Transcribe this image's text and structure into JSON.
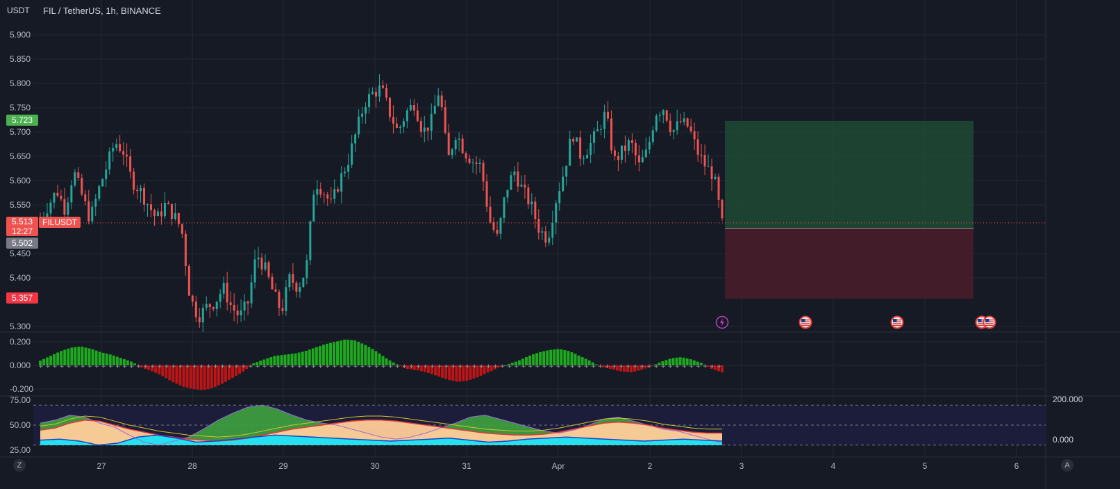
{
  "header": {
    "currency": "USDT",
    "title": "FIL / TetherUS, 1h, BINANCE"
  },
  "price_tags": {
    "take_profit": "5.723",
    "current_price": "5.513",
    "countdown": "12:27",
    "symbol": "FILUSDT",
    "entry": "5.502",
    "stop_loss": "5.357"
  },
  "colors": {
    "background": "#161a25",
    "bull": "#26a69a",
    "bear": "#ef5350",
    "profit_zone": "#1f4a35",
    "loss_zone": "#4a1f2a",
    "osc_pos": "#1fba1f",
    "osc_neg": "#d01515",
    "lower_band": "#1b1d3a",
    "wave_fill": "#ffcc99",
    "cyan_fill": "#00e5ff"
  },
  "events": [
    {
      "icon": "lightning-icon"
    },
    {
      "icon": "us-flag-icon"
    },
    {
      "icon": "us-flag-icon"
    },
    {
      "icon": "us-flag-icon"
    },
    {
      "icon": "us-flag-icon"
    }
  ],
  "bottom_right": {
    "top": "200.000",
    "bottom": "0.000"
  },
  "corner_buttons": {
    "left": "Z",
    "right": "A"
  },
  "chart_data": [
    {
      "type": "candlestick",
      "title": "FIL / TetherUS, 1h, BINANCE",
      "y_ticks": [
        "5.900",
        "5.850",
        "5.800",
        "5.750",
        "5.700",
        "5.650",
        "5.600",
        "5.550",
        "5.450",
        "5.400",
        "5.300"
      ],
      "ylim": [
        5.28,
        5.91
      ],
      "x_ticks": [
        "27",
        "28",
        "29",
        "30",
        "31",
        "Apr",
        "2",
        "3",
        "4",
        "5",
        "6"
      ],
      "close_path": [
        5.52,
        5.55,
        5.58,
        5.54,
        5.62,
        5.57,
        5.52,
        5.58,
        5.63,
        5.68,
        5.66,
        5.6,
        5.58,
        5.55,
        5.52,
        5.55,
        5.53,
        5.5,
        5.36,
        5.32,
        5.34,
        5.35,
        5.38,
        5.34,
        5.32,
        5.35,
        5.45,
        5.42,
        5.37,
        5.33,
        5.4,
        5.38,
        5.42,
        5.6,
        5.58,
        5.55,
        5.6,
        5.64,
        5.7,
        5.76,
        5.78,
        5.79,
        5.74,
        5.7,
        5.74,
        5.76,
        5.7,
        5.72,
        5.79,
        5.64,
        5.7,
        5.66,
        5.64,
        5.63,
        5.52,
        5.48,
        5.58,
        5.62,
        5.58,
        5.55,
        5.5,
        5.48,
        5.56,
        5.62,
        5.7,
        5.65,
        5.67,
        5.7,
        5.74,
        5.64,
        5.66,
        5.68,
        5.63,
        5.66,
        5.74,
        5.75,
        5.7,
        5.72,
        5.71,
        5.66,
        5.63,
        5.61,
        5.51
      ],
      "long_position": {
        "take_profit": 5.723,
        "entry": 5.502,
        "stop_loss": 5.357
      }
    },
    {
      "type": "bar",
      "y_ticks": [
        "0.200",
        "0.000",
        "-0.200"
      ],
      "ylim": [
        -0.24,
        0.24
      ],
      "values": [
        0.04,
        0.08,
        0.12,
        0.15,
        0.16,
        0.14,
        0.11,
        0.09,
        0.06,
        0.03,
        -0.02,
        -0.05,
        -0.09,
        -0.14,
        -0.18,
        -0.2,
        -0.21,
        -0.19,
        -0.15,
        -0.1,
        -0.05,
        0.02,
        0.05,
        0.08,
        0.09,
        0.1,
        0.12,
        0.15,
        0.18,
        0.2,
        0.22,
        0.21,
        0.17,
        0.12,
        0.06,
        0.01,
        -0.03,
        -0.04,
        -0.06,
        -0.09,
        -0.12,
        -0.14,
        -0.13,
        -0.1,
        -0.06,
        -0.02,
        0.01,
        0.04,
        0.08,
        0.11,
        0.13,
        0.14,
        0.12,
        0.08,
        0.04,
        -0.01,
        -0.03,
        -0.05,
        -0.06,
        -0.04,
        -0.01,
        0.03,
        0.06,
        0.07,
        0.05,
        0.02,
        -0.03,
        -0.06
      ]
    },
    {
      "type": "area",
      "y_ticks": [
        "75.00",
        "50.00",
        "25.00"
      ],
      "ylim": [
        22,
        78
      ],
      "series": [
        {
          "values": [
            45,
            47,
            52,
            55,
            54,
            50,
            46,
            43,
            40,
            38,
            36,
            35,
            34,
            35,
            37,
            40,
            43,
            46,
            48,
            50,
            52,
            54,
            55,
            55,
            54,
            52,
            50,
            48,
            46,
            44,
            42,
            41,
            40,
            40,
            41,
            43,
            46,
            49,
            52,
            53,
            52,
            50,
            47,
            45,
            43,
            42,
            42
          ]
        },
        {
          "values": [
            52,
            55,
            60,
            58,
            52,
            48,
            40,
            33,
            30,
            34,
            38,
            46,
            55,
            62,
            68,
            70,
            66,
            60,
            55,
            52,
            50,
            46,
            42,
            38,
            36,
            38,
            42,
            47,
            52,
            58,
            60,
            56,
            52,
            48,
            44,
            42,
            45,
            50,
            56,
            58,
            54,
            50,
            46,
            44,
            40,
            36,
            32
          ]
        },
        {
          "values": [
            35,
            36,
            34,
            30,
            32,
            38,
            40,
            37,
            33,
            34,
            36,
            38,
            40,
            39,
            38,
            37,
            36,
            35,
            34,
            35,
            36,
            37,
            35,
            33,
            34,
            36,
            37,
            38,
            37,
            36,
            35,
            34,
            35,
            36,
            35,
            34
          ]
        }
      ]
    }
  ]
}
